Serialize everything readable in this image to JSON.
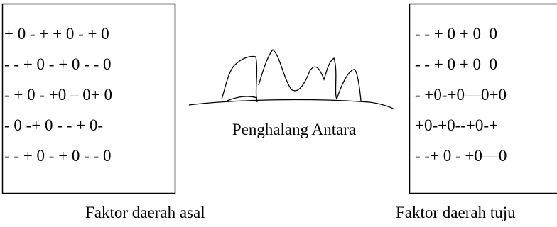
{
  "origin": {
    "rows": [
      "+ 0 - + + 0 - + 0",
      "- - + 0 - + 0 - - 0",
      "- + 0 - +0 – 0+ 0",
      "- 0 -+ 0 - - + 0-",
      "- - + 0 - + 0 - - 0"
    ],
    "label": "Faktor daerah asal"
  },
  "barrier": {
    "label": "Penghalang Antara"
  },
  "destination": {
    "rows": [
      "- - + 0 + 0  0",
      "- - + 0 + 0  0",
      "- +0-+0—0+0",
      "+0-+0--+0-+",
      "- -+ 0 - +0—0"
    ],
    "label": "Faktor daerah tuju"
  }
}
